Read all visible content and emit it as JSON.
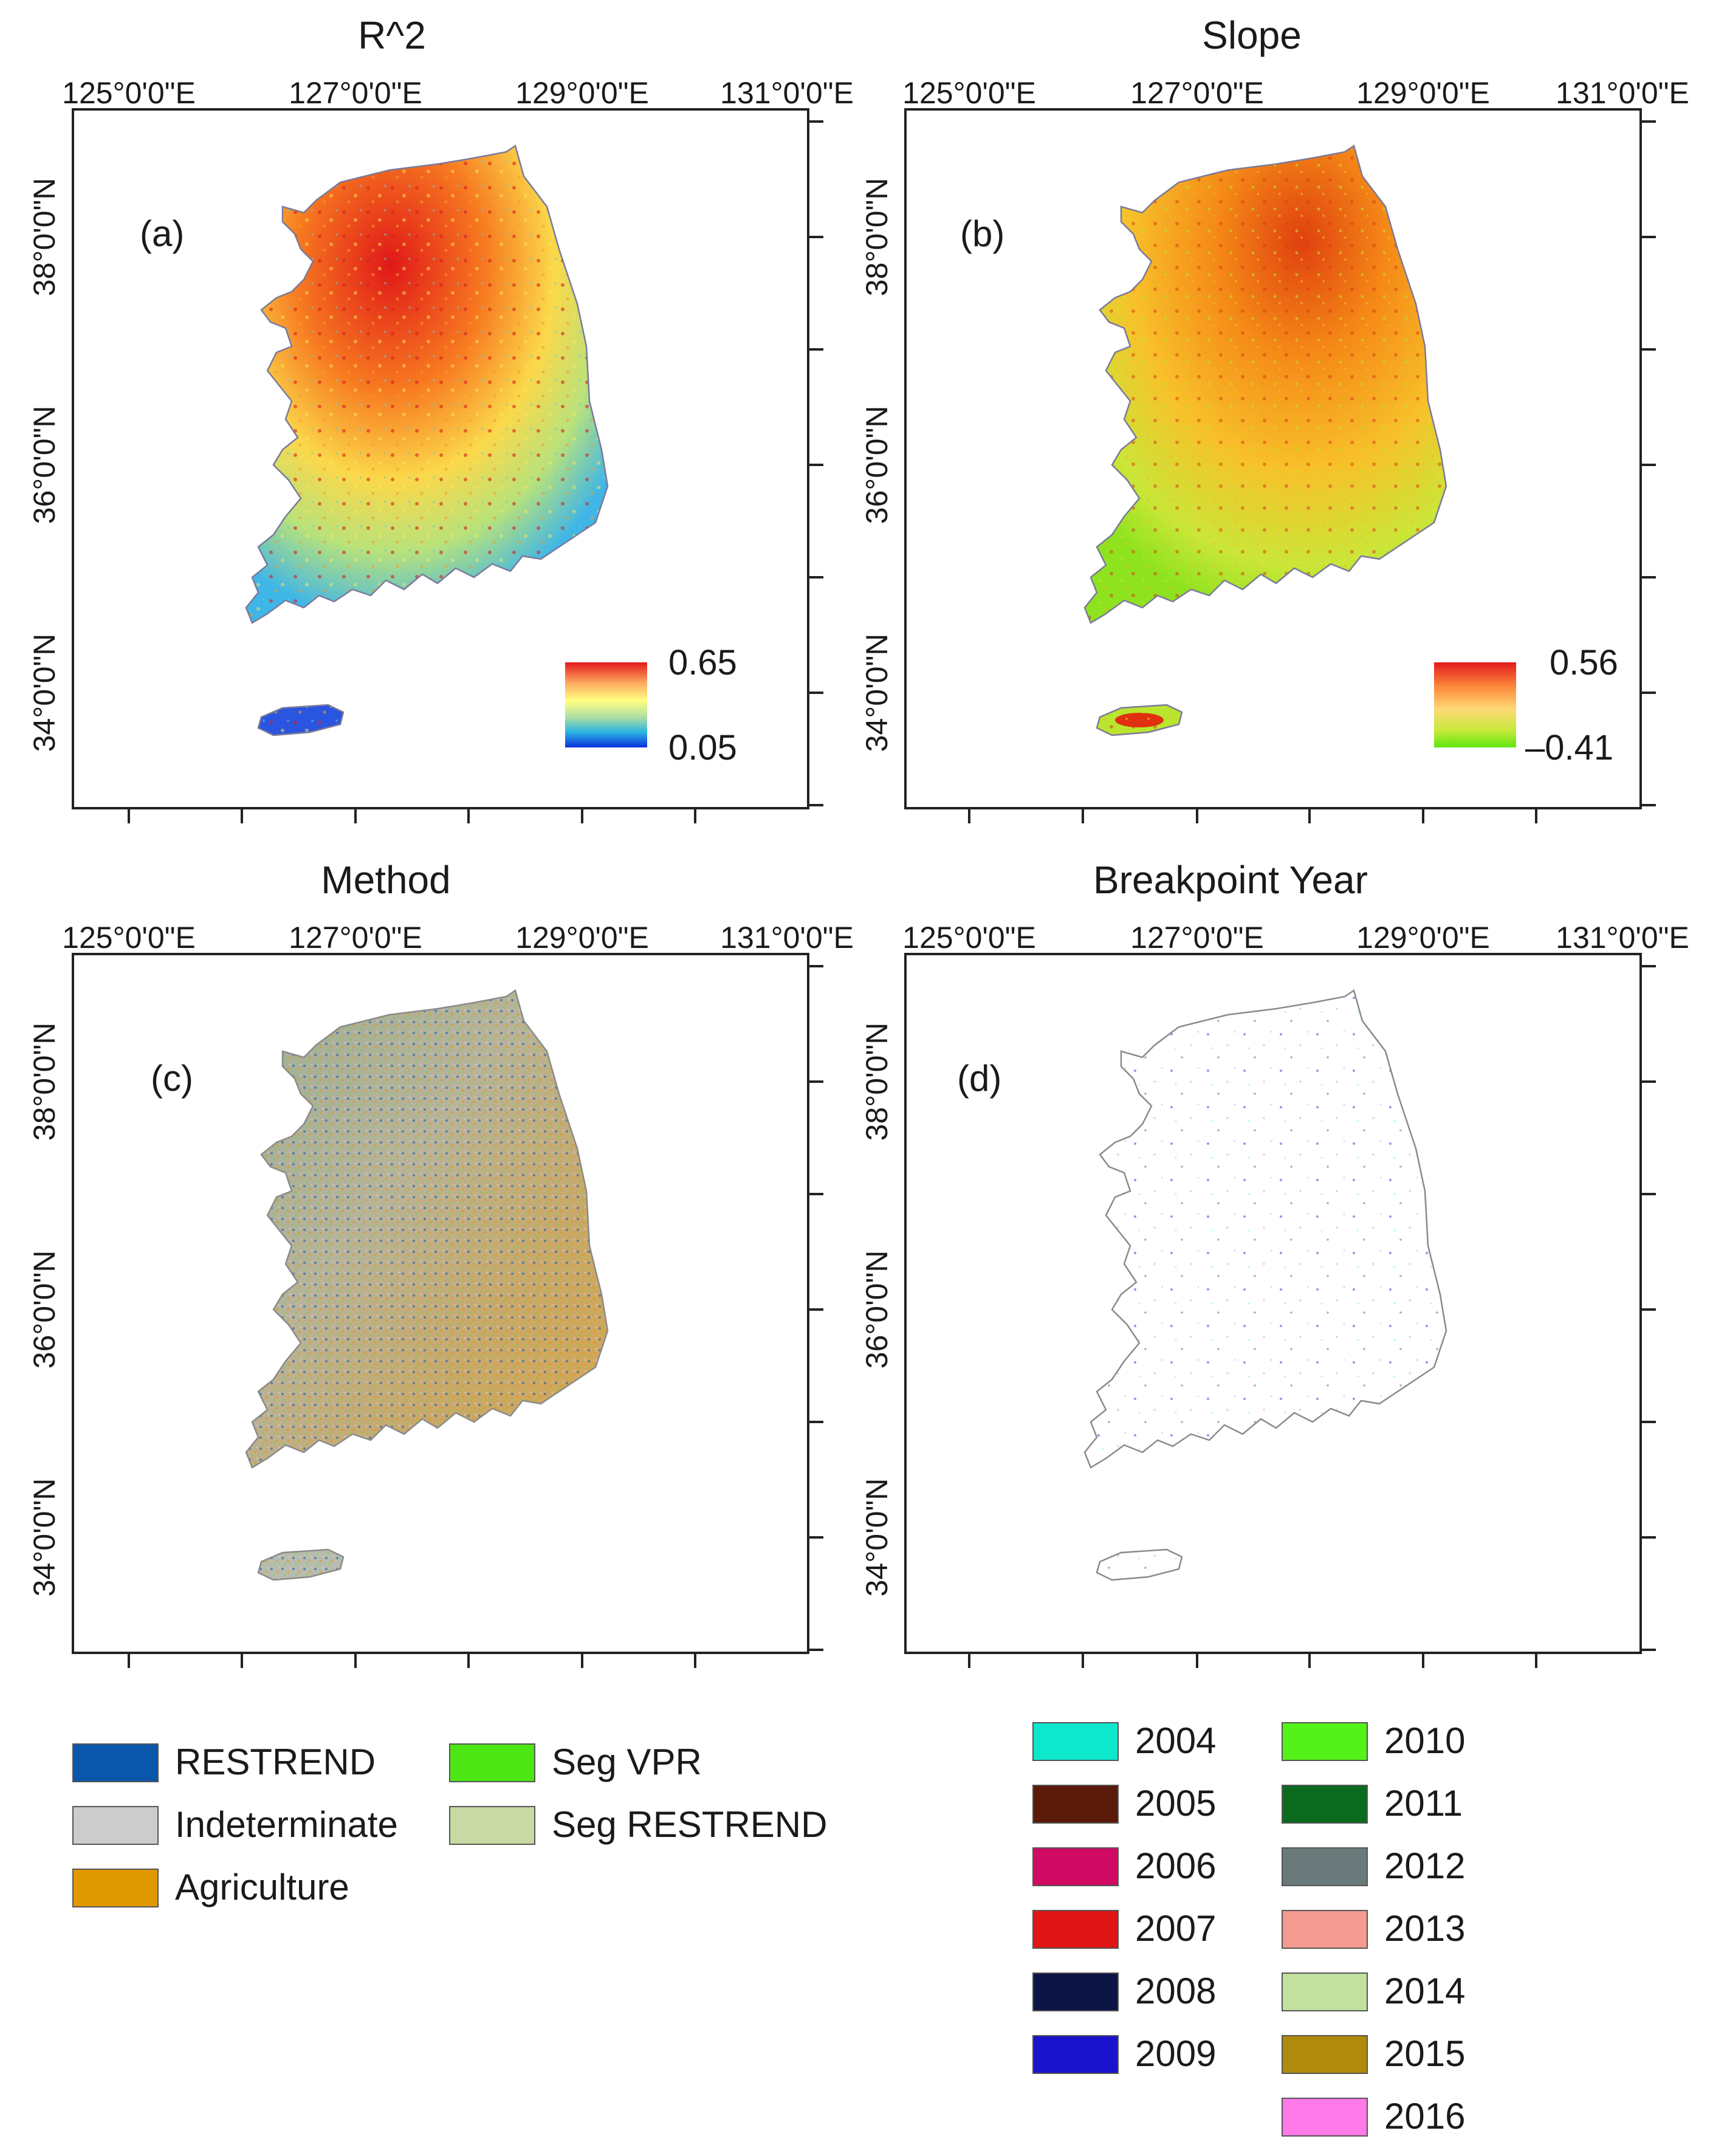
{
  "panels": [
    {
      "id": "a",
      "title": "R^2",
      "label": "(a)",
      "x_ticks": [
        "125°0'0\"E",
        "127°0'0\"E",
        "129°0'0\"E",
        "131°0'0\"E"
      ],
      "y_ticks": [
        "38°0'0\"N",
        "36°0'0\"N",
        "34°0'0\"N"
      ],
      "colorbar": {
        "max_label": "0.65",
        "min_label": "0.05",
        "colors": [
          "#d7191c",
          "#fdae61",
          "#ffff80",
          "#abdda4",
          "#2b83ba",
          "#0a2fe0"
        ]
      }
    },
    {
      "id": "b",
      "title": "Slope",
      "label": "(b)",
      "x_ticks": [
        "125°0'0\"E",
        "127°0'0\"E",
        "129°0'0\"E",
        "131°0'0\"E"
      ],
      "y_ticks": [
        "38°0'0\"N",
        "36°0'0\"N",
        "34°0'0\"N"
      ],
      "colorbar": {
        "max_label": "0.56",
        "min_label": "–0.41",
        "colors": [
          "#e31a1c",
          "#fd8d3c",
          "#fed976",
          "#c7e93a",
          "#5ee60f"
        ]
      }
    },
    {
      "id": "c",
      "title": "Method",
      "label": "(c)",
      "x_ticks": [
        "125°0'0\"E",
        "127°0'0\"E",
        "129°0'0\"E",
        "131°0'0\"E"
      ],
      "y_ticks": [
        "38°0'0\"N",
        "36°0'0\"N",
        "34°0'0\"N"
      ]
    },
    {
      "id": "d",
      "title": "Breakpoint Year",
      "label": "(d)",
      "x_ticks": [
        "125°0'0\"E",
        "127°0'0\"E",
        "129°0'0\"E",
        "131°0'0\"E"
      ],
      "y_ticks": [
        "38°0'0\"N",
        "36°0'0\"N",
        "34°0'0\"N"
      ]
    }
  ],
  "method_legend": [
    {
      "label": "RESTREND",
      "color": "#0a56aa"
    },
    {
      "label": "Indeterminate",
      "color": "#cccccc"
    },
    {
      "label": "Agriculture",
      "color": "#e09a00"
    },
    {
      "label": "Seg VPR",
      "color": "#4ce614"
    },
    {
      "label": "Seg RESTREND",
      "color": "#c8d9a3"
    }
  ],
  "year_legend": [
    {
      "label": "2004",
      "color": "#0de8cc"
    },
    {
      "label": "2005",
      "color": "#5a1a0a"
    },
    {
      "label": "2006",
      "color": "#d10a63"
    },
    {
      "label": "2007",
      "color": "#e01515"
    },
    {
      "label": "2008",
      "color": "#0b1445"
    },
    {
      "label": "2009",
      "color": "#1a12cc"
    },
    {
      "label": "2010",
      "color": "#55f21a"
    },
    {
      "label": "2011",
      "color": "#0a6b1f"
    },
    {
      "label": "2012",
      "color": "#6a7a7a"
    },
    {
      "label": "2013",
      "color": "#f59a90"
    },
    {
      "label": "2014",
      "color": "#c2e0a0"
    },
    {
      "label": "2015",
      "color": "#b08a0a"
    },
    {
      "label": "2016",
      "color": "#ff7ae8"
    }
  ]
}
